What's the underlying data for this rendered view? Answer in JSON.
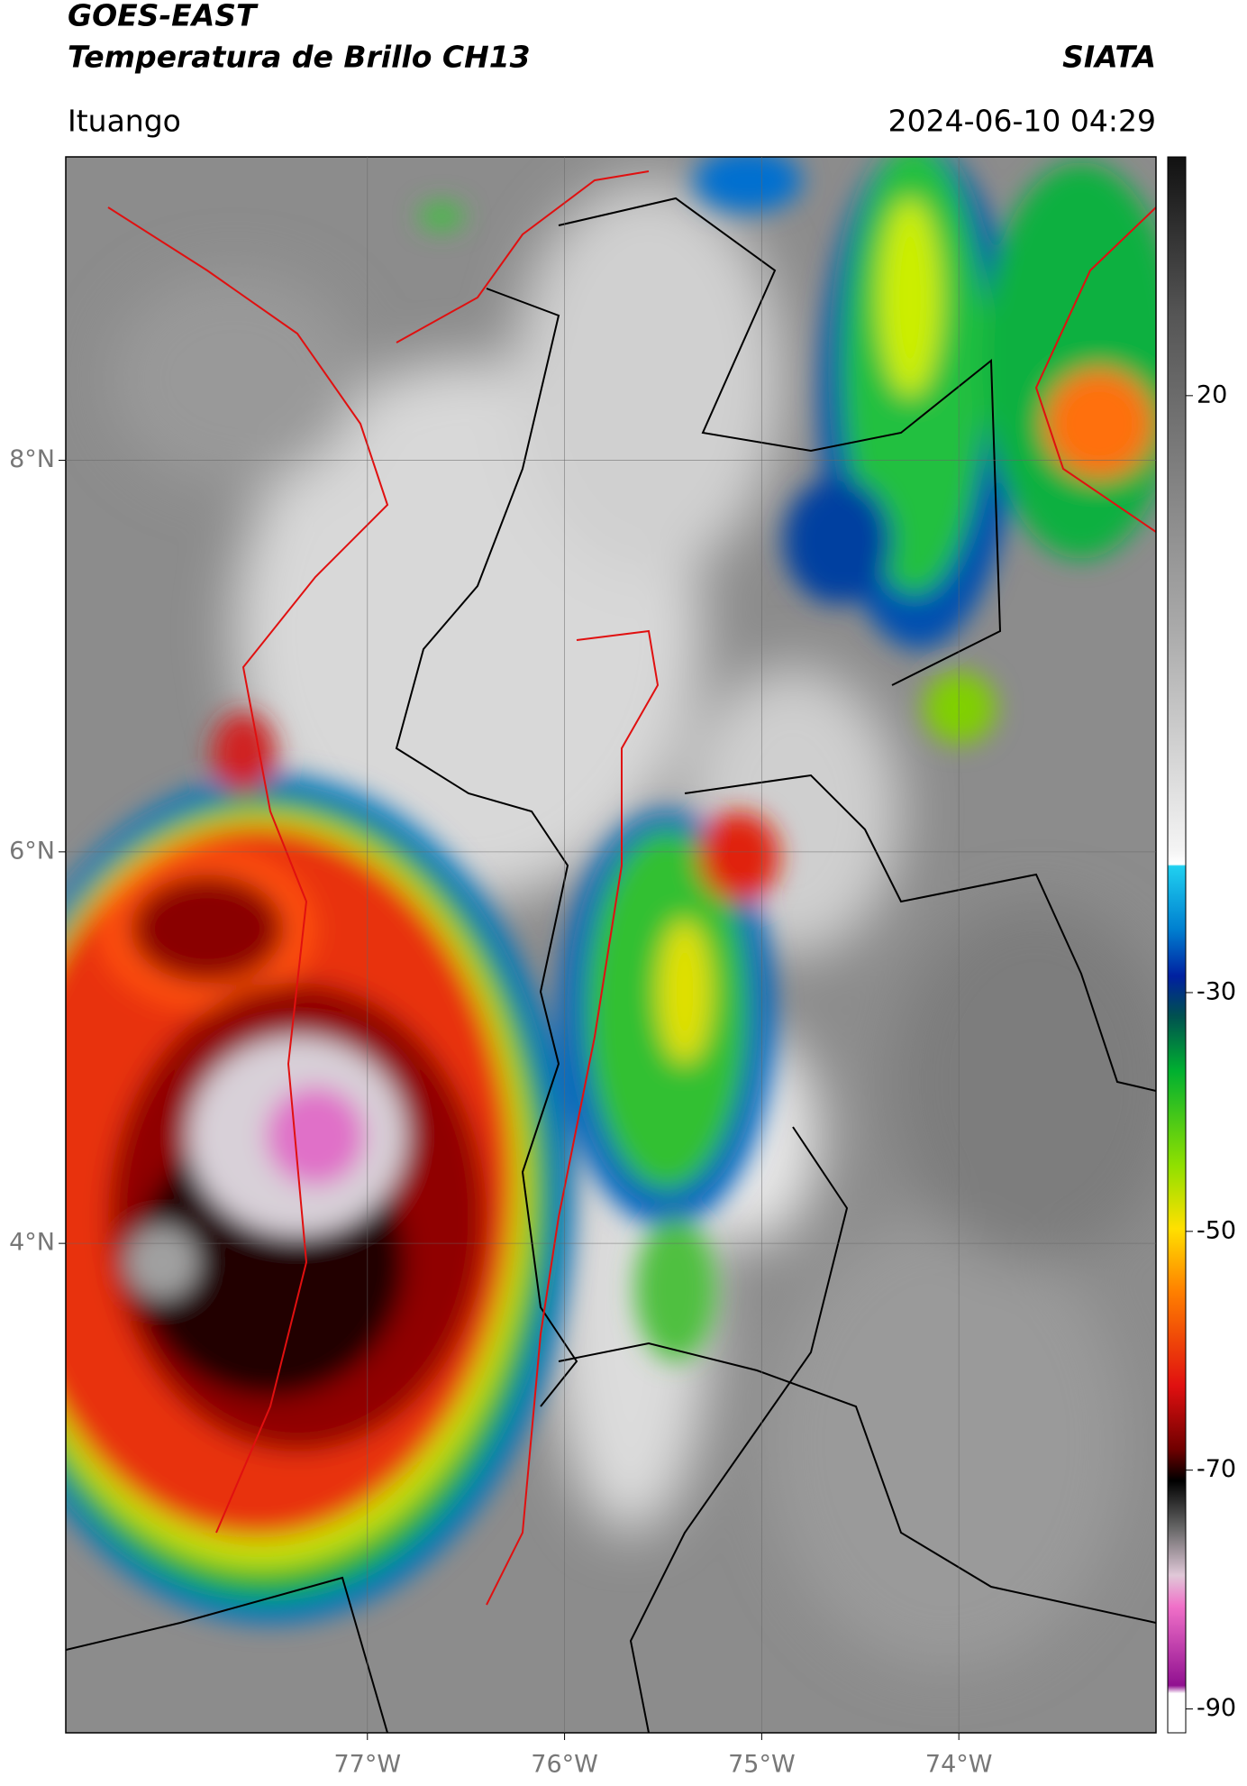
{
  "header": {
    "title": "GOES-EAST",
    "subtitle": "Temperatura de Brillo CH13",
    "source": "SIATA",
    "region": "Ituango",
    "datetime": "2024-06-10 04:29"
  },
  "map": {
    "xlim": [
      -78.53,
      -73.0
    ],
    "ylim": [
      1.5,
      9.55
    ],
    "xticks": [
      {
        "value": -77,
        "label": "77°W"
      },
      {
        "value": -76,
        "label": "76°W"
      },
      {
        "value": -75,
        "label": "75°W"
      },
      {
        "value": -74,
        "label": "74°W"
      }
    ],
    "yticks": [
      {
        "value": 4,
        "label": "4°N"
      },
      {
        "value": 6,
        "label": "6°N"
      },
      {
        "value": 8,
        "label": "8°N"
      }
    ]
  },
  "colorbar": {
    "clim": [
      -92,
      40
    ],
    "ticks": [
      20,
      -30,
      -50,
      -70,
      -90
    ]
  }
}
